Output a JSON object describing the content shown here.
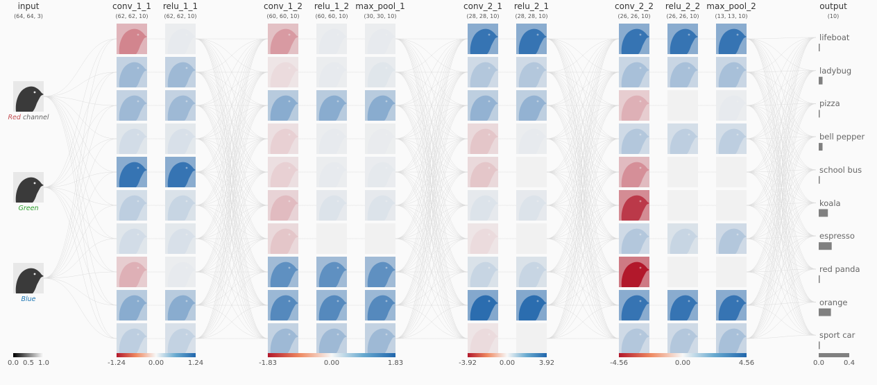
{
  "input": {
    "name": "input",
    "shape": "(64, 64, 3)",
    "channels": [
      {
        "label": "Red",
        "suffix": " channel",
        "color": "#c44e52"
      },
      {
        "label": "Green",
        "suffix": "",
        "color": "#2ca02c"
      },
      {
        "label": "Blue",
        "suffix": "",
        "color": "#1f77b4"
      }
    ],
    "legend_ticks": [
      "0.0",
      "0.5",
      "1.0"
    ]
  },
  "layers": [
    {
      "name": "conv_1_1",
      "shape": "(62, 62, 10)",
      "intensity": [
        -0.5,
        0.4,
        0.4,
        0.15,
        0.9,
        0.25,
        0.15,
        -0.3,
        0.5,
        0.25
      ]
    },
    {
      "name": "relu_1_1",
      "shape": "(62, 62, 10)",
      "intensity": [
        0.05,
        0.4,
        0.4,
        0.12,
        0.9,
        0.2,
        0.12,
        0.05,
        0.5,
        0.22
      ]
    },
    {
      "name": "conv_1_2",
      "shape": "(60, 60, 10)",
      "intensity": [
        -0.4,
        -0.1,
        0.5,
        -0.15,
        -0.15,
        -0.25,
        -0.2,
        0.7,
        0.75,
        0.4
      ]
    },
    {
      "name": "relu_1_2",
      "shape": "(60, 60, 10)",
      "intensity": [
        0.05,
        0.05,
        0.5,
        0.05,
        0.05,
        0.1,
        0.0,
        0.7,
        0.75,
        0.4
      ]
    },
    {
      "name": "max_pool_1",
      "shape": "(30, 30, 10)",
      "intensity": [
        0.05,
        0.08,
        0.5,
        0.04,
        0.06,
        0.1,
        0.0,
        0.7,
        0.75,
        0.4
      ]
    },
    {
      "name": "conv_2_1",
      "shape": "(28, 28, 10)",
      "intensity": [
        0.9,
        0.3,
        0.45,
        -0.2,
        -0.2,
        0.1,
        -0.1,
        0.2,
        0.95,
        -0.1
      ]
    },
    {
      "name": "relu_2_1",
      "shape": "(28, 28, 10)",
      "intensity": [
        0.9,
        0.3,
        0.45,
        0.05,
        0.0,
        0.1,
        0.0,
        0.2,
        0.95,
        0.0
      ]
    },
    {
      "name": "conv_2_2",
      "shape": "(26, 26, 10)",
      "intensity": [
        0.9,
        0.35,
        -0.3,
        0.3,
        -0.45,
        -0.85,
        0.3,
        -1.0,
        0.9,
        0.3
      ]
    },
    {
      "name": "relu_2_2",
      "shape": "(26, 26, 10)",
      "intensity": [
        0.9,
        0.35,
        0.0,
        0.25,
        0.0,
        0.0,
        0.2,
        0.0,
        0.9,
        0.3
      ]
    },
    {
      "name": "max_pool_2",
      "shape": "(13, 13, 10)",
      "intensity": [
        0.9,
        0.35,
        0.05,
        0.25,
        0.0,
        0.0,
        0.3,
        0.0,
        0.9,
        0.35
      ]
    }
  ],
  "colorbars": [
    {
      "ticks": [
        "-1.24",
        "0.00",
        "1.24"
      ]
    },
    {
      "ticks": [
        "-1.83",
        "0.00",
        "1.83"
      ]
    },
    {
      "ticks": [
        "-3.92",
        "0.00",
        "3.92"
      ]
    },
    {
      "ticks": [
        "-4.56",
        "0.00",
        "4.56"
      ]
    }
  ],
  "output": {
    "name": "output",
    "shape": "(10)",
    "classes": [
      {
        "label": "lifeboat",
        "prob": 0.005
      },
      {
        "label": "ladybug",
        "prob": 0.05
      },
      {
        "label": "pizza",
        "prob": 0.0
      },
      {
        "label": "bell pepper",
        "prob": 0.05
      },
      {
        "label": "school bus",
        "prob": 0.005
      },
      {
        "label": "koala",
        "prob": 0.12
      },
      {
        "label": "espresso",
        "prob": 0.17
      },
      {
        "label": "red panda",
        "prob": 0.005
      },
      {
        "label": "orange",
        "prob": 0.16
      },
      {
        "label": "sport car",
        "prob": 0.005
      }
    ],
    "axis_ticks": [
      "0.0",
      "0.4"
    ],
    "axis_max": 0.4
  },
  "colors": {
    "blue": "#2166ac",
    "red": "#b2182b",
    "neutral": "#f1f1f1",
    "bar": "#808080",
    "edge": "#d0d0d0"
  }
}
